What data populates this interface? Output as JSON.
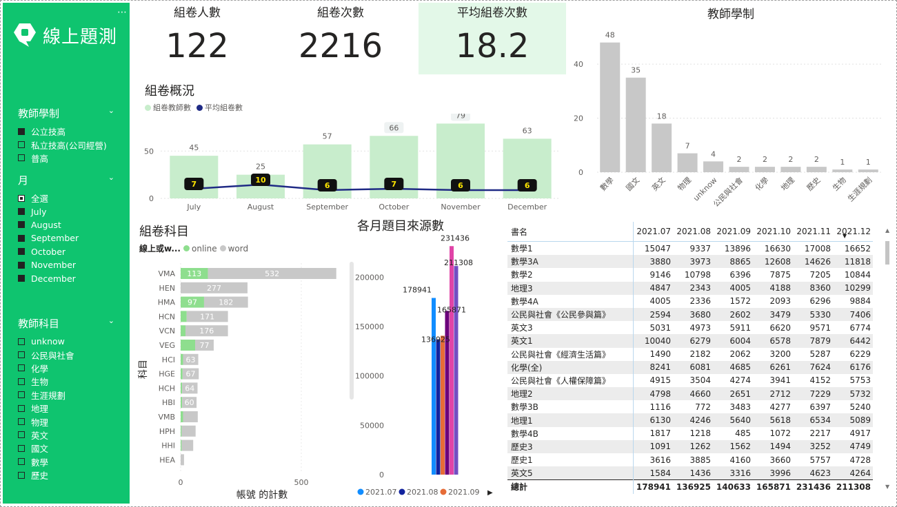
{
  "sidebar": {
    "logo_text": "線上題測",
    "more_icon": "⋯",
    "slicer_edu": {
      "title": "教師學制",
      "items": [
        {
          "label": "公立技高",
          "state": "on"
        },
        {
          "label": "私立技高(公司經營)",
          "state": "off"
        },
        {
          "label": "普高",
          "state": "off"
        }
      ]
    },
    "slicer_month": {
      "title": "月",
      "items": [
        {
          "label": "全選",
          "state": "partial"
        },
        {
          "label": "July",
          "state": "on"
        },
        {
          "label": "August",
          "state": "on"
        },
        {
          "label": "September",
          "state": "on"
        },
        {
          "label": "October",
          "state": "on"
        },
        {
          "label": "November",
          "state": "on"
        },
        {
          "label": "December",
          "state": "on"
        }
      ]
    },
    "slicer_subject": {
      "title": "教師科目",
      "items": [
        {
          "label": "unknow",
          "state": "off"
        },
        {
          "label": "公民與社會",
          "state": "off"
        },
        {
          "label": "化學",
          "state": "off"
        },
        {
          "label": "生物",
          "state": "off"
        },
        {
          "label": "生涯規劃",
          "state": "off"
        },
        {
          "label": "地理",
          "state": "off"
        },
        {
          "label": "物理",
          "state": "off"
        },
        {
          "label": "英文",
          "state": "off"
        },
        {
          "label": "國文",
          "state": "off"
        },
        {
          "label": "數學",
          "state": "off"
        },
        {
          "label": "歷史",
          "state": "off"
        }
      ]
    }
  },
  "kpis": {
    "people": {
      "label": "組卷人數",
      "value": "122"
    },
    "count": {
      "label": "組卷次數",
      "value": "2216"
    },
    "avg": {
      "label": "平均組卷次數",
      "value": "18.2"
    }
  },
  "colors": {
    "green": "#0fc46f",
    "light_green": "#c8edcc",
    "navy": "#1f2a85",
    "grey_bar": "#c8c8c8",
    "online": "#8ede8e"
  },
  "chart_data": [
    {
      "id": "overview",
      "type": "bar",
      "title": "組卷概況",
      "categories": [
        "July",
        "August",
        "September",
        "October",
        "November",
        "December"
      ],
      "series": [
        {
          "name": "組卷教師數",
          "values": [
            45,
            25,
            57,
            66,
            79,
            63
          ]
        },
        {
          "name": "平均組卷數",
          "type": "line",
          "values": [
            7,
            10,
            6,
            7,
            6,
            6
          ]
        }
      ],
      "ylim": [
        0,
        80
      ],
      "yticks": [
        0,
        50
      ]
    },
    {
      "id": "edu",
      "type": "bar",
      "title": "教師學制",
      "categories": [
        "數學",
        "國文",
        "英文",
        "物理",
        "unknow",
        "公民與社會",
        "化學",
        "地理",
        "歷史",
        "生物",
        "生涯規劃"
      ],
      "values": [
        48,
        35,
        18,
        7,
        4,
        2,
        2,
        2,
        2,
        1,
        1
      ],
      "ylim": [
        0,
        52
      ],
      "yticks": [
        0,
        20,
        40
      ]
    },
    {
      "id": "subject",
      "type": "bar",
      "orientation": "horizontal",
      "stacked": true,
      "title": "組卷科目",
      "legend_title": "線上或w...",
      "ylabel": "科目",
      "xlabel": "帳號 的計數",
      "categories": [
        "VMA",
        "HEN",
        "HMA",
        "HCN",
        "VCN",
        "VEG",
        "HCI",
        "HGE",
        "HCH",
        "HBI",
        "VMB",
        "HPH",
        "HHI",
        "HEA"
      ],
      "series": [
        {
          "name": "online",
          "values": [
            113,
            0,
            97,
            25,
            20,
            60,
            10,
            8,
            6,
            6,
            10,
            4,
            4,
            0
          ]
        },
        {
          "name": "word",
          "values": [
            532,
            277,
            182,
            171,
            176,
            77,
            63,
            67,
            64,
            60,
            61,
            58,
            48,
            14
          ]
        }
      ],
      "series_labels": {
        "online": [
          "113",
          "",
          "97",
          "",
          "",
          "",
          "",
          "",
          "",
          "",
          "",
          "",
          "",
          ""
        ],
        "word": [
          "532",
          "277",
          "182",
          "171",
          "176",
          "77",
          "63",
          "67",
          "64",
          "60",
          "",
          "",
          "",
          ""
        ]
      },
      "xlim": [
        0,
        700
      ],
      "xticks": [
        0,
        500
      ]
    },
    {
      "id": "monthly",
      "type": "bar",
      "title": "各月題目來源數",
      "categories": [
        "2021.07",
        "2021.08",
        "2021.09",
        "2021.10",
        "2021.11",
        "2021.12"
      ],
      "values": [
        178941,
        136925,
        140633,
        165871,
        231436,
        211308
      ],
      "value_labels": [
        "178941",
        "136925",
        "",
        "165871",
        "231436",
        "211308"
      ],
      "series_colors": [
        "#118dff",
        "#12239e",
        "#e66c37",
        "#6b007b",
        "#e044a7",
        "#744ec2"
      ],
      "legend": [
        "2021.07",
        "2021.08",
        "2021.09"
      ],
      "ylim": [
        0,
        240000
      ],
      "yticks": [
        0,
        50000,
        100000,
        150000,
        200000
      ]
    }
  ],
  "table": {
    "columns": [
      "書名",
      "2021.07",
      "2021.08",
      "2021.09",
      "2021.10",
      "2021.11",
      "2021.12"
    ],
    "rows": [
      [
        "數學1",
        "15047",
        "9337",
        "13896",
        "16630",
        "17008",
        "16652"
      ],
      [
        "數學3A",
        "3880",
        "3973",
        "8865",
        "12608",
        "14626",
        "11818"
      ],
      [
        "數學2",
        "9146",
        "10798",
        "6396",
        "7875",
        "7205",
        "10844"
      ],
      [
        "地理3",
        "4847",
        "2343",
        "4005",
        "4188",
        "8360",
        "10299"
      ],
      [
        "數學4A",
        "4005",
        "2336",
        "1572",
        "2093",
        "6296",
        "9884"
      ],
      [
        "公民與社會《公民參與篇》",
        "2594",
        "3680",
        "2602",
        "3479",
        "5330",
        "7406"
      ],
      [
        "英文3",
        "5031",
        "4973",
        "5911",
        "6620",
        "9571",
        "6774"
      ],
      [
        "英文1",
        "10040",
        "6279",
        "6004",
        "6578",
        "7879",
        "6442"
      ],
      [
        "公民與社會《經濟生活篇》",
        "1490",
        "2182",
        "2062",
        "3200",
        "5287",
        "6229"
      ],
      [
        "化學(全)",
        "8241",
        "6081",
        "4685",
        "6261",
        "7624",
        "6176"
      ],
      [
        "公民與社會《人權保障篇》",
        "4915",
        "3504",
        "4274",
        "3941",
        "4152",
        "5753"
      ],
      [
        "地理2",
        "4798",
        "4660",
        "2651",
        "2712",
        "7229",
        "5732"
      ],
      [
        "數學3B",
        "1116",
        "772",
        "3483",
        "4277",
        "6397",
        "5240"
      ],
      [
        "地理1",
        "6130",
        "4246",
        "5640",
        "5618",
        "6534",
        "5089"
      ],
      [
        "數學4B",
        "1817",
        "1218",
        "485",
        "1072",
        "2217",
        "4917"
      ],
      [
        "歷史3",
        "1091",
        "1262",
        "1562",
        "1494",
        "3252",
        "4749"
      ],
      [
        "歷史1",
        "3616",
        "3885",
        "4160",
        "3660",
        "5757",
        "4728"
      ],
      [
        "英文5",
        "1584",
        "1436",
        "3316",
        "3996",
        "4623",
        "4264"
      ]
    ],
    "total": [
      "總計",
      "178941",
      "136925",
      "140633",
      "165871",
      "231436",
      "211308"
    ],
    "sort_icon": "▼"
  }
}
